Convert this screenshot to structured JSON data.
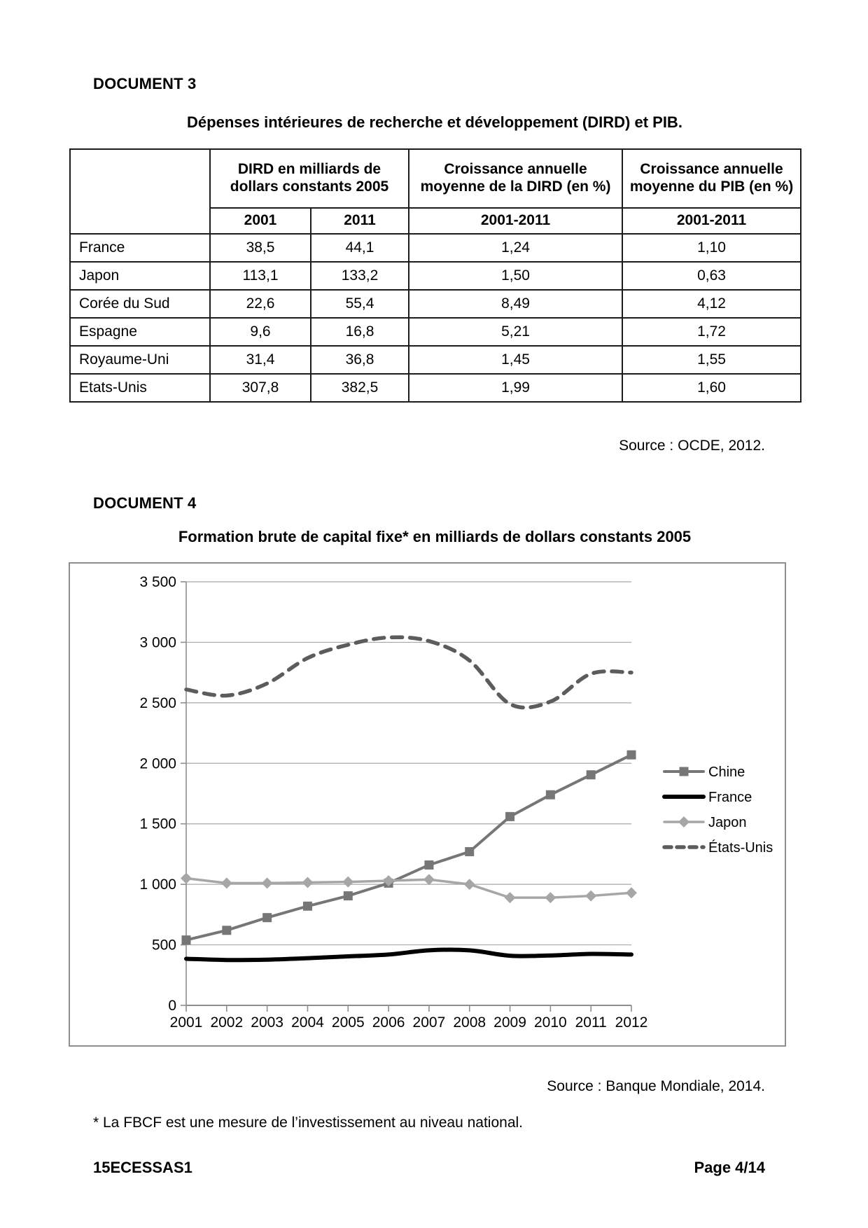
{
  "page": {
    "doc3_heading": "DOCUMENT 3",
    "doc3_title": "Dépenses intérieures de recherche et développement (DIRD) et PIB.",
    "table": {
      "group_headers": [
        "DIRD en milliards de dollars constants 2005",
        "Croissance annuelle moyenne de la DIRD (en %)",
        "Croissance annuelle moyenne du PIB (en %)"
      ],
      "sub_headers": [
        "2001",
        "2011",
        "2001-2011",
        "2001-2011"
      ],
      "rows": [
        {
          "label": "France",
          "values": [
            "38,5",
            "44,1",
            "1,24",
            "1,10"
          ]
        },
        {
          "label": "Japon",
          "values": [
            "113,1",
            "133,2",
            "1,50",
            "0,63"
          ]
        },
        {
          "label": "Corée du Sud",
          "values": [
            "22,6",
            "55,4",
            "8,49",
            "4,12"
          ]
        },
        {
          "label": "Espagne",
          "values": [
            "9,6",
            "16,8",
            "5,21",
            "1,72"
          ]
        },
        {
          "label": "Royaume-Uni",
          "values": [
            "31,4",
            "36,8",
            "1,45",
            "1,55"
          ]
        },
        {
          "label": "Etats-Unis",
          "values": [
            "307,8",
            "382,5",
            "1,99",
            "1,60"
          ]
        }
      ]
    },
    "source3": "Source : OCDE, 2012.",
    "doc4_heading": "DOCUMENT 4",
    "doc4_title": "Formation brute de capital fixe* en milliards de dollars constants 2005",
    "source4": "Source : Banque Mondiale, 2014.",
    "footnote": "* La FBCF est une mesure de l’investissement au niveau national.",
    "footer_left": "15ECESSAS1",
    "footer_right": "Page 4/14"
  },
  "chart_data": {
    "type": "line",
    "title": "Formation brute de capital fixe* en milliards de dollars constants 2005",
    "x": [
      2001,
      2002,
      2003,
      2004,
      2005,
      2006,
      2007,
      2008,
      2009,
      2010,
      2011,
      2012
    ],
    "series": [
      {
        "name": "Chine",
        "values": [
          540,
          620,
          725,
          820,
          905,
          1010,
          1160,
          1270,
          1560,
          1740,
          1905,
          2070
        ],
        "color": "#767676",
        "marker": "square",
        "width": 4,
        "smooth": false,
        "dash": ""
      },
      {
        "name": "France",
        "values": [
          385,
          375,
          378,
          390,
          405,
          420,
          455,
          455,
          410,
          412,
          425,
          420
        ],
        "color": "#000000",
        "marker": "none",
        "width": 6,
        "smooth": true,
        "dash": ""
      },
      {
        "name": "Japon",
        "values": [
          1050,
          1010,
          1010,
          1015,
          1020,
          1030,
          1040,
          1000,
          890,
          890,
          905,
          930
        ],
        "color": "#a6a6a6",
        "marker": "diamond",
        "width": 3.5,
        "smooth": false,
        "dash": ""
      },
      {
        "name": "États-Unis",
        "values": [
          2610,
          2560,
          2660,
          2870,
          2980,
          3040,
          3010,
          2850,
          2490,
          2510,
          2740,
          2750
        ],
        "color": "#5c5c5c",
        "marker": "none",
        "width": 5.5,
        "smooth": true,
        "dash": "15 11"
      }
    ],
    "ylim": [
      0,
      3500
    ],
    "ytick_step": 500,
    "ytick_labels": [
      "0",
      "500",
      "1 000",
      "1 500",
      "2 000",
      "2 500",
      "3 000",
      "3 500"
    ],
    "grid": true,
    "legend_position": "right",
    "colors": {
      "grid": "#a8a8a8",
      "axis": "#8e8e8e"
    }
  }
}
